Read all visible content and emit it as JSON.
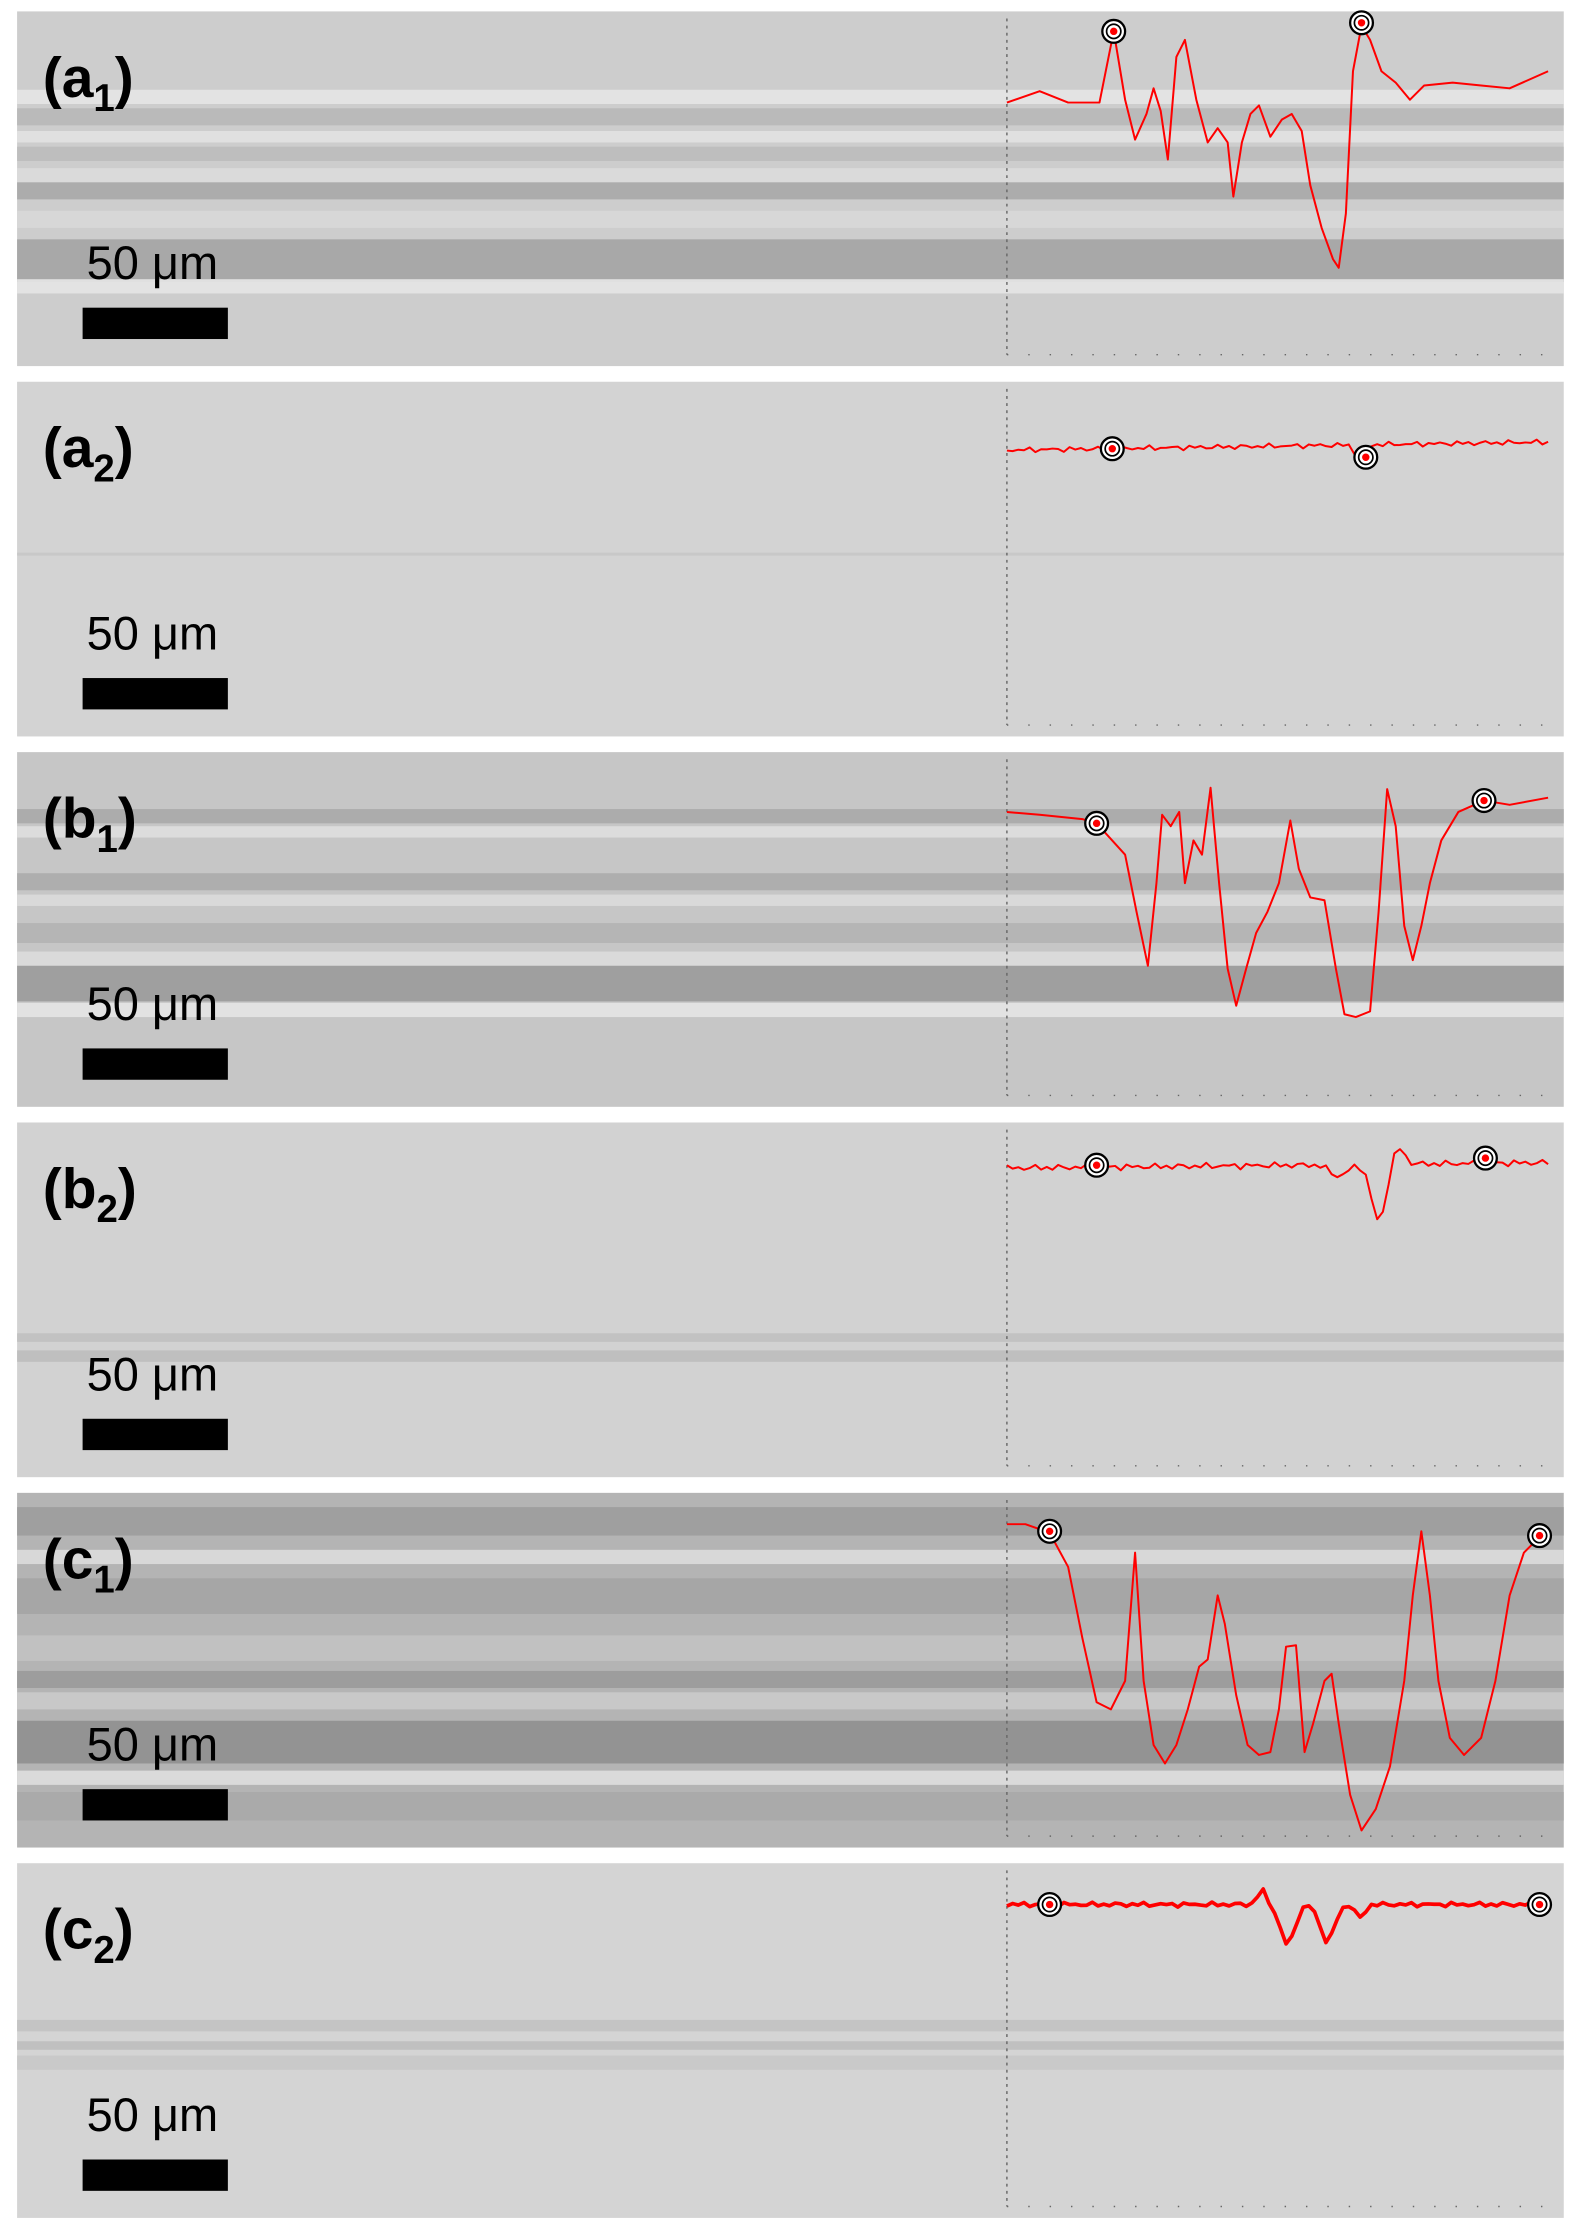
{
  "panels": [
    {
      "label_open": "(",
      "label_letter": "a",
      "label_subscript": "1",
      "label_close": ")",
      "scale_bar": "50 μm"
    },
    {
      "label_open": "(",
      "label_letter": "a",
      "label_subscript": "2",
      "label_close": ")",
      "scale_bar": "50 μm"
    },
    {
      "label_open": "(",
      "label_letter": "b",
      "label_subscript": "1",
      "label_close": ")",
      "scale_bar": "50 μm"
    },
    {
      "label_open": "(",
      "label_letter": "b",
      "label_subscript": "2",
      "label_close": ")",
      "scale_bar": "50 μm"
    },
    {
      "label_open": "(",
      "label_letter": "c",
      "label_subscript": "1",
      "label_close": ")",
      "scale_bar": "50 μm"
    },
    {
      "label_open": "(",
      "label_letter": "c",
      "label_subscript": "2",
      "label_close": ")",
      "scale_bar": "50 μm"
    }
  ]
}
